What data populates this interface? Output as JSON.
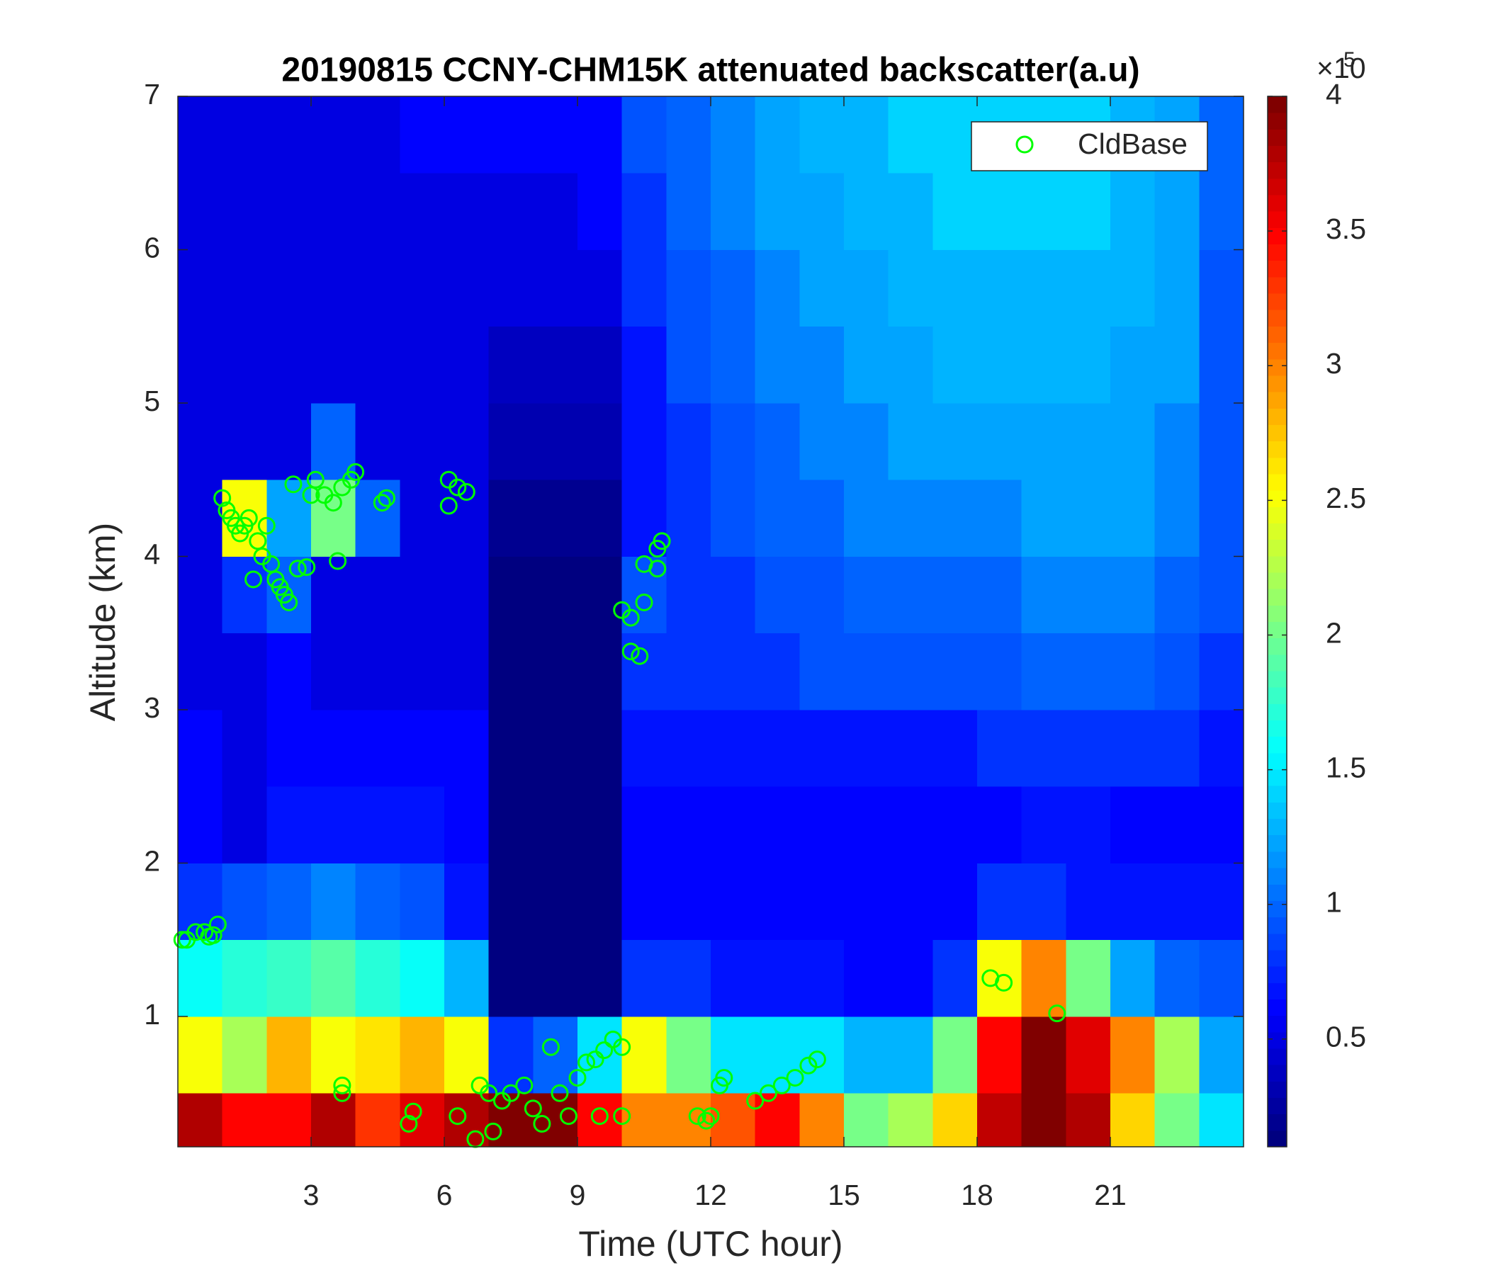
{
  "chart_data": {
    "type": "heatmap",
    "title": "20190815 CCNY-CHM15K attenuated backscatter(a.u)",
    "x_label": "Time (UTC hour)",
    "y_label": "Altitude (km)",
    "xlim": [
      0,
      24
    ],
    "ylim": [
      0.15,
      7
    ],
    "xticks": [
      3,
      6,
      9,
      12,
      15,
      18,
      21
    ],
    "yticks": [
      1,
      2,
      3,
      4,
      5,
      6,
      7
    ],
    "colormap": "jet",
    "clim": [
      0.1,
      4
    ],
    "cticks": [
      0.5,
      1,
      1.5,
      2,
      2.5,
      3,
      3.5,
      4
    ],
    "colorbar_scale": {
      "base": "×10",
      "exponent": 5
    },
    "x_edges": [
      0,
      1,
      2,
      3,
      4,
      5,
      6,
      7,
      8,
      9,
      10,
      11,
      12,
      13,
      14,
      15,
      16,
      17,
      18,
      19,
      20,
      21,
      22,
      23,
      24
    ],
    "y_edges": [
      0.15,
      0.5,
      1,
      1.5,
      2,
      2.5,
      3,
      3.5,
      4,
      4.5,
      5,
      5.5,
      6,
      6.5,
      7
    ],
    "z": [
      [
        3.8,
        3.5,
        3.5,
        3.8,
        3.3,
        3.6,
        3.8,
        4,
        4,
        3.5,
        3.0,
        3.0,
        3.2,
        3.5,
        3.0,
        2.0,
        2.2,
        2.7,
        3.7,
        4,
        3.8,
        2.7,
        2.0,
        1.5
      ],
      [
        2.5,
        2.2,
        2.8,
        2.5,
        2.6,
        2.8,
        2.5,
        0.8,
        1.0,
        1.5,
        2.5,
        2.0,
        1.5,
        1.5,
        1.5,
        1.3,
        1.3,
        2.0,
        3.5,
        4,
        3.6,
        3.0,
        2.2,
        1.2
      ],
      [
        1.6,
        1.7,
        1.8,
        1.9,
        1.7,
        1.6,
        1.3,
        0.15,
        0.15,
        0.15,
        0.8,
        0.8,
        0.7,
        0.7,
        0.7,
        0.6,
        0.6,
        0.8,
        2.5,
        3.0,
        2.0,
        1.2,
        1.0,
        0.9
      ],
      [
        0.8,
        0.9,
        1.0,
        1.1,
        1.0,
        0.9,
        0.7,
        0.15,
        0.15,
        0.15,
        0.6,
        0.6,
        0.6,
        0.6,
        0.6,
        0.6,
        0.6,
        0.6,
        0.8,
        0.8,
        0.7,
        0.7,
        0.7,
        0.7
      ],
      [
        0.6,
        0.5,
        0.7,
        0.7,
        0.7,
        0.7,
        0.6,
        0.15,
        0.15,
        0.15,
        0.6,
        0.6,
        0.6,
        0.6,
        0.6,
        0.6,
        0.6,
        0.6,
        0.6,
        0.7,
        0.7,
        0.6,
        0.6,
        0.6
      ],
      [
        0.6,
        0.5,
        0.6,
        0.6,
        0.6,
        0.6,
        0.6,
        0.15,
        0.15,
        0.15,
        0.7,
        0.7,
        0.7,
        0.7,
        0.7,
        0.7,
        0.7,
        0.7,
        0.8,
        0.8,
        0.8,
        0.8,
        0.8,
        0.7
      ],
      [
        0.5,
        0.5,
        0.6,
        0.5,
        0.5,
        0.5,
        0.5,
        0.15,
        0.15,
        0.15,
        0.8,
        0.8,
        0.8,
        0.8,
        0.9,
        0.9,
        0.9,
        0.9,
        0.9,
        1.0,
        1.0,
        1.0,
        0.9,
        0.8
      ],
      [
        0.5,
        0.8,
        1.0,
        0.5,
        0.5,
        0.5,
        0.5,
        0.15,
        0.15,
        0.15,
        0.9,
        0.8,
        0.8,
        0.9,
        0.9,
        1.0,
        1.0,
        1.0,
        1.0,
        1.1,
        1.1,
        1.1,
        1.0,
        0.9
      ],
      [
        0.5,
        2.5,
        1.2,
        2.0,
        1.0,
        0.5,
        0.5,
        0.2,
        0.2,
        0.2,
        0.7,
        0.8,
        0.9,
        1.0,
        1.0,
        1.1,
        1.1,
        1.1,
        1.1,
        1.2,
        1.2,
        1.2,
        1.1,
        0.9
      ],
      [
        0.5,
        0.5,
        0.5,
        1.0,
        0.5,
        0.5,
        0.5,
        0.3,
        0.3,
        0.3,
        0.7,
        0.8,
        0.9,
        1.0,
        1.1,
        1.1,
        1.2,
        1.2,
        1.2,
        1.2,
        1.2,
        1.2,
        1.1,
        0.9
      ],
      [
        0.5,
        0.5,
        0.5,
        0.5,
        0.5,
        0.5,
        0.5,
        0.4,
        0.4,
        0.4,
        0.7,
        0.9,
        1.0,
        1.1,
        1.1,
        1.2,
        1.2,
        1.3,
        1.3,
        1.3,
        1.3,
        1.2,
        1.2,
        0.9
      ],
      [
        0.5,
        0.5,
        0.5,
        0.5,
        0.5,
        0.5,
        0.5,
        0.5,
        0.5,
        0.5,
        0.8,
        0.9,
        1.0,
        1.1,
        1.2,
        1.2,
        1.3,
        1.3,
        1.3,
        1.3,
        1.3,
        1.3,
        1.2,
        0.9
      ],
      [
        0.5,
        0.5,
        0.5,
        0.5,
        0.5,
        0.5,
        0.5,
        0.5,
        0.5,
        0.6,
        0.8,
        1.0,
        1.1,
        1.2,
        1.2,
        1.3,
        1.3,
        1.4,
        1.4,
        1.4,
        1.4,
        1.3,
        1.2,
        1.0
      ],
      [
        0.5,
        0.5,
        0.5,
        0.5,
        0.5,
        0.6,
        0.6,
        0.6,
        0.6,
        0.6,
        0.9,
        1.0,
        1.1,
        1.2,
        1.3,
        1.3,
        1.4,
        1.4,
        1.4,
        1.4,
        1.4,
        1.3,
        1.2,
        1.0
      ]
    ],
    "legend": "northeast",
    "series": [
      {
        "name": "CldBase",
        "type": "scatter",
        "color": "#00ff00",
        "x": [
          0.1,
          0.2,
          0.4,
          0.6,
          0.7,
          0.8,
          0.9,
          1.0,
          1.1,
          1.2,
          1.3,
          1.4,
          1.5,
          1.6,
          1.7,
          1.8,
          1.9,
          2.0,
          2.1,
          2.2,
          2.3,
          2.4,
          2.5,
          2.6,
          2.7,
          2.9,
          3.0,
          3.1,
          3.3,
          3.5,
          3.6,
          3.7,
          3.9,
          4.0,
          4.6,
          4.7,
          6.1,
          6.1,
          6.3,
          6.5,
          3.7,
          3.7,
          5.2,
          5.3,
          6.3,
          6.7,
          6.8,
          7.0,
          7.1,
          7.3,
          7.5,
          7.8,
          8.0,
          8.2,
          8.4,
          8.6,
          8.8,
          9.0,
          9.2,
          9.4,
          9.6,
          9.8,
          10.0,
          9.5,
          10.0,
          10.0,
          10.2,
          10.2,
          10.4,
          10.5,
          10.5,
          10.8,
          10.9,
          10.8,
          11.7,
          11.9,
          12.0,
          12.2,
          12.3,
          13.0,
          13.3,
          13.6,
          13.9,
          14.2,
          14.4,
          18.3,
          18.6,
          19.8
        ],
        "y": [
          1.5,
          1.5,
          1.55,
          1.55,
          1.52,
          1.53,
          1.6,
          4.38,
          4.3,
          4.25,
          4.2,
          4.15,
          4.2,
          4.25,
          3.85,
          4.1,
          4.0,
          4.2,
          3.95,
          3.85,
          3.8,
          3.75,
          3.7,
          4.47,
          3.92,
          3.93,
          4.4,
          4.5,
          4.4,
          4.35,
          3.97,
          4.45,
          4.5,
          4.55,
          4.35,
          4.38,
          4.5,
          4.33,
          4.45,
          4.42,
          0.55,
          0.5,
          0.3,
          0.38,
          0.35,
          0.2,
          0.55,
          0.5,
          0.25,
          0.45,
          0.5,
          0.55,
          0.4,
          0.3,
          0.8,
          0.5,
          0.35,
          0.6,
          0.7,
          0.72,
          0.78,
          0.85,
          0.8,
          0.35,
          0.35,
          3.65,
          3.6,
          3.38,
          3.35,
          3.7,
          3.95,
          4.05,
          4.1,
          3.92,
          0.35,
          0.32,
          0.35,
          0.55,
          0.6,
          0.45,
          0.5,
          0.55,
          0.6,
          0.68,
          0.72,
          1.25,
          1.22,
          1.02
        ]
      }
    ]
  }
}
